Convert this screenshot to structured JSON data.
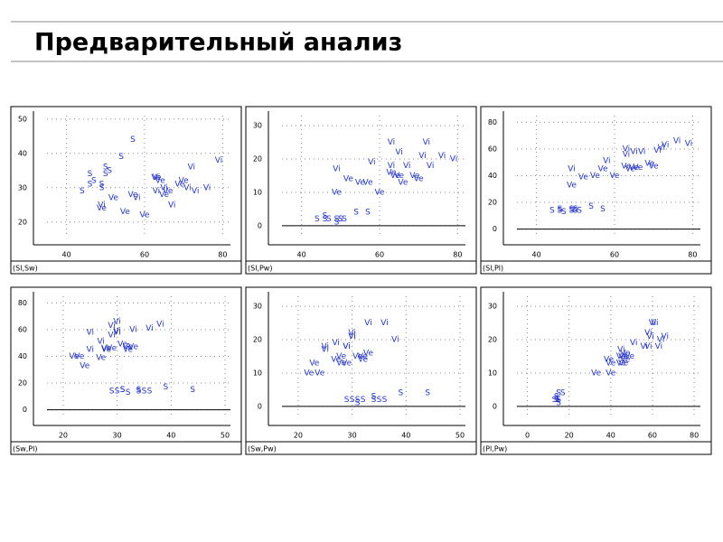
{
  "slide_title": "Предварительный анализ",
  "chart_data": [
    {
      "type": "scatter",
      "label": "(Sl,Sw)",
      "xlim": [
        35,
        82
      ],
      "ylim": [
        16,
        51
      ],
      "xticks": [
        40,
        60,
        80
      ],
      "yticks": [
        20,
        30,
        40,
        50
      ],
      "grid": true,
      "series": [
        {
          "name": "S",
          "color": "#2233cc",
          "x": [
            51,
            49,
            47,
            46,
            50,
            54,
            46,
            50,
            44,
            49,
            57
          ],
          "values": [
            35,
            30,
            32,
            31,
            36,
            39,
            34,
            34,
            29,
            31,
            44
          ]
        },
        {
          "name": "Ve",
          "color": "#2233cc",
          "x": [
            70,
            64,
            69,
            55,
            65,
            57,
            63,
            49,
            66,
            52,
            60
          ],
          "values": [
            32,
            32,
            31,
            23,
            28,
            28,
            33,
            24,
            29,
            27,
            22
          ]
        },
        {
          "name": "Vi",
          "color": "#2233cc",
          "x": [
            63,
            58,
            71,
            63,
            65,
            76,
            49,
            73,
            67,
            72,
            79
          ],
          "values": [
            33,
            27,
            30,
            29,
            30,
            30,
            25,
            29,
            25,
            36,
            38
          ]
        }
      ]
    },
    {
      "type": "scatter",
      "label": "(Sl,Pw)",
      "xlim": [
        35,
        82
      ],
      "ylim": [
        -3,
        33
      ],
      "xticks": [
        40,
        60,
        80
      ],
      "yticks": [
        0,
        10,
        20,
        30
      ],
      "grid": true,
      "series": [
        {
          "name": "S",
          "color": "#2233cc",
          "x": [
            51,
            49,
            47,
            46,
            50,
            54,
            46,
            50,
            44,
            49,
            57
          ],
          "values": [
            2,
            2,
            2,
            2,
            2,
            4,
            3,
            2,
            2,
            1,
            4
          ]
        },
        {
          "name": "Ve",
          "color": "#2233cc",
          "x": [
            70,
            64,
            69,
            55,
            65,
            57,
            63,
            49,
            66,
            52,
            60
          ],
          "values": [
            14,
            15,
            15,
            13,
            15,
            13,
            16,
            10,
            13,
            14,
            10
          ]
        },
        {
          "name": "Vi",
          "color": "#2233cc",
          "x": [
            63,
            58,
            71,
            63,
            65,
            76,
            49,
            73,
            67,
            72,
            79
          ],
          "values": [
            25,
            19,
            21,
            18,
            22,
            21,
            17,
            18,
            18,
            25,
            20
          ]
        }
      ]
    },
    {
      "type": "scatter",
      "label": "(Sl,Pl)",
      "xlim": [
        35,
        82
      ],
      "ylim": [
        -5,
        85
      ],
      "xticks": [
        40,
        60,
        80
      ],
      "yticks": [
        0,
        20,
        40,
        60,
        80
      ],
      "grid": true,
      "series": [
        {
          "name": "S",
          "color": "#2233cc",
          "x": [
            51,
            49,
            47,
            46,
            50,
            54,
            46,
            50,
            44,
            49,
            57
          ],
          "values": [
            14,
            14,
            13,
            15,
            14,
            17,
            14,
            15,
            14,
            15,
            15
          ]
        },
        {
          "name": "Ve",
          "color": "#2233cc",
          "x": [
            70,
            64,
            69,
            55,
            65,
            57,
            63,
            49,
            66,
            52,
            60
          ],
          "values": [
            47,
            45,
            49,
            40,
            46,
            45,
            47,
            33,
            46,
            39,
            40
          ]
        },
        {
          "name": "Vi",
          "color": "#2233cc",
          "x": [
            63,
            58,
            71,
            63,
            65,
            76,
            49,
            73,
            67,
            72,
            79
          ],
          "values": [
            60,
            51,
            59,
            56,
            58,
            66,
            45,
            63,
            58,
            61,
            64
          ]
        }
      ]
    },
    {
      "type": "scatter",
      "label": "(Sw,Pl)",
      "xlim": [
        17,
        51
      ],
      "ylim": [
        -5,
        85
      ],
      "xticks": [
        20,
        30,
        40,
        50
      ],
      "yticks": [
        0,
        20,
        40,
        60,
        80
      ],
      "grid": true,
      "series": [
        {
          "name": "S",
          "color": "#2233cc",
          "x": [
            35,
            30,
            32,
            31,
            36,
            39,
            34,
            34,
            29,
            31,
            44
          ],
          "values": [
            14,
            14,
            13,
            15,
            14,
            17,
            14,
            15,
            14,
            15,
            15
          ]
        },
        {
          "name": "Ve",
          "color": "#2233cc",
          "x": [
            32,
            32,
            31,
            23,
            28,
            28,
            33,
            24,
            29,
            27,
            22
          ],
          "values": [
            47,
            45,
            49,
            40,
            46,
            45,
            47,
            33,
            46,
            39,
            40
          ]
        },
        {
          "name": "Vi",
          "color": "#2233cc",
          "x": [
            33,
            27,
            30,
            29,
            30,
            30,
            25,
            29,
            25,
            36,
            38
          ],
          "values": [
            60,
            51,
            59,
            56,
            58,
            66,
            45,
            63,
            58,
            61,
            64
          ]
        }
      ]
    },
    {
      "type": "scatter",
      "label": "(Sw,Pw)",
      "xlim": [
        17,
        51
      ],
      "ylim": [
        -3,
        33
      ],
      "xticks": [
        20,
        30,
        40,
        50
      ],
      "yticks": [
        0,
        10,
        20,
        30
      ],
      "grid": true,
      "series": [
        {
          "name": "S",
          "color": "#2233cc",
          "x": [
            35,
            30,
            32,
            31,
            36,
            39,
            34,
            34,
            29,
            31,
            44
          ],
          "values": [
            2,
            2,
            2,
            2,
            2,
            4,
            3,
            2,
            2,
            1,
            4
          ]
        },
        {
          "name": "Ve",
          "color": "#2233cc",
          "x": [
            32,
            32,
            31,
            23,
            28,
            28,
            33,
            24,
            29,
            27,
            22
          ],
          "values": [
            14,
            15,
            15,
            13,
            15,
            13,
            16,
            10,
            13,
            14,
            10
          ]
        },
        {
          "name": "Vi",
          "color": "#2233cc",
          "x": [
            33,
            27,
            30,
            29,
            30,
            30,
            25,
            29,
            25,
            36,
            38
          ],
          "values": [
            25,
            19,
            21,
            18,
            22,
            21,
            17,
            18,
            18,
            25,
            20
          ]
        }
      ]
    },
    {
      "type": "scatter",
      "label": "(Pl,Pw)",
      "xlim": [
        -5,
        83
      ],
      "ylim": [
        -3,
        33
      ],
      "xticks": [
        0,
        20,
        40,
        60,
        80
      ],
      "yticks": [
        0,
        10,
        20,
        30
      ],
      "grid": true,
      "series": [
        {
          "name": "S",
          "color": "#2233cc",
          "x": [
            14,
            14,
            13,
            15,
            14,
            17,
            14,
            15,
            14,
            15,
            15
          ],
          "values": [
            2,
            2,
            2,
            2,
            2,
            4,
            3,
            2,
            2,
            1,
            4
          ]
        },
        {
          "name": "Ve",
          "color": "#2233cc",
          "x": [
            47,
            45,
            49,
            40,
            46,
            45,
            47,
            33,
            46,
            39,
            40
          ],
          "values": [
            14,
            15,
            15,
            13,
            15,
            13,
            16,
            10,
            13,
            14,
            10
          ]
        },
        {
          "name": "Vi",
          "color": "#2233cc",
          "x": [
            60,
            51,
            59,
            56,
            58,
            66,
            45,
            63,
            58,
            61,
            64
          ],
          "values": [
            25,
            19,
            21,
            18,
            22,
            21,
            17,
            18,
            18,
            25,
            20
          ]
        }
      ]
    }
  ]
}
